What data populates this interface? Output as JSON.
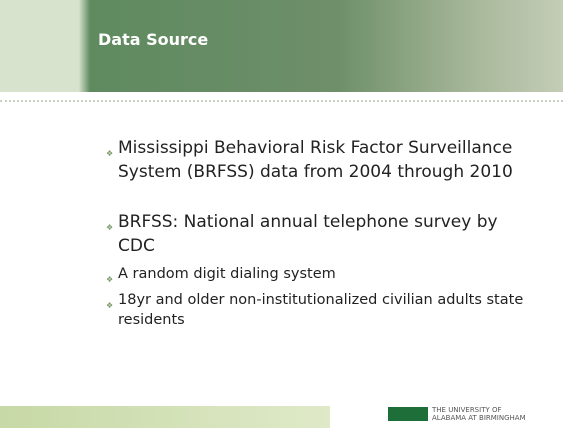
{
  "header": {
    "title": "Data Source"
  },
  "bullets": [
    {
      "text": "Mississippi Behavioral Risk Factor Surveillance System (BRFSS) data from 2004 through 2010",
      "sub": []
    },
    {
      "text": "BRFSS: National annual telephone survey by CDC",
      "sub": [
        "A random digit dialing system",
        "18yr and older non-institutionalized civilian adults state residents"
      ]
    }
  ],
  "footer": {
    "logo_line1": "THE UNIVERSITY OF",
    "logo_line2": "ALABAMA AT BIRMINGHAM"
  }
}
